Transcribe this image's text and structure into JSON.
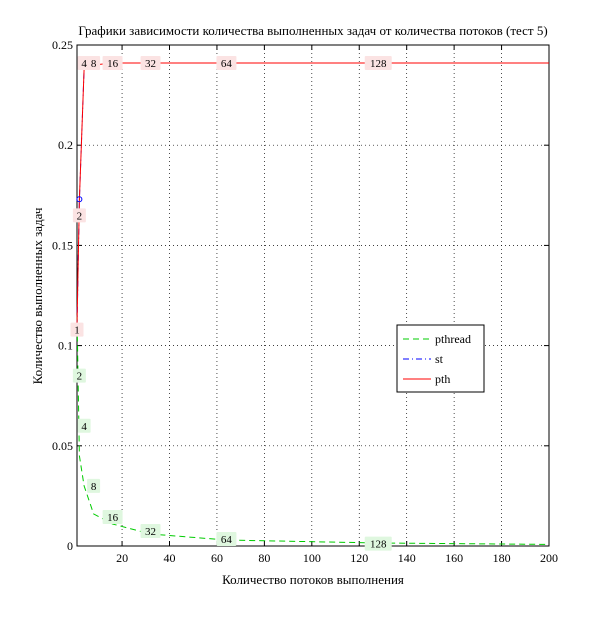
{
  "chart_data": {
    "type": "line",
    "title": "Графики зависимости количества выполненных задач от количества потоков (тест 5)",
    "xlabel": "Количество потоков выполнения",
    "ylabel": "Количество выполненных задач",
    "xlim": [
      1,
      200
    ],
    "ylim": [
      0,
      0.25
    ],
    "x_ticks": [
      20,
      40,
      60,
      80,
      100,
      120,
      140,
      160,
      180,
      200
    ],
    "x_tick_labels": [
      "20",
      "40",
      "60",
      "80",
      "100",
      "120",
      "140",
      "160",
      "180",
      "200"
    ],
    "y_ticks": [
      0,
      0.05,
      0.1,
      0.15,
      0.2,
      0.25
    ],
    "y_tick_labels": [
      "0",
      "0.05",
      "0.1",
      "0.15",
      "0.2",
      "0.25"
    ],
    "grid": true,
    "legend_position": "right",
    "series": [
      {
        "name": "pthread",
        "color": "#00cc00",
        "dash": "dashed",
        "x": [
          1,
          2,
          4,
          8,
          16,
          32,
          64,
          128,
          200
        ],
        "y": [
          0.115,
          0.045,
          0.03,
          0.016,
          0.011,
          0.006,
          0.003,
          0.0015,
          0.0008
        ]
      },
      {
        "name": "st",
        "color": "#0000ff",
        "dash": "dashdot",
        "x": [
          1,
          2,
          4,
          8
        ],
        "y": [
          0.11,
          0.173,
          0.238,
          0.241
        ]
      },
      {
        "name": "pth",
        "color": "#ff0000",
        "dash": "solid",
        "x": [
          1,
          2,
          4,
          8,
          16,
          32,
          64,
          128,
          200
        ],
        "y": [
          0.11,
          0.173,
          0.238,
          0.24,
          0.241,
          0.241,
          0.241,
          0.241,
          0.241
        ]
      }
    ],
    "point_labels": [
      {
        "text": "1",
        "series": "pth",
        "x": 1,
        "y": 0.108
      },
      {
        "text": "2",
        "series": "pth",
        "x": 2,
        "y": 0.165
      },
      {
        "text": "4",
        "series": "pth",
        "x": 4,
        "y": 0.241
      },
      {
        "text": "8",
        "series": "pth",
        "x": 8,
        "y": 0.241
      },
      {
        "text": "16",
        "series": "pth",
        "x": 16,
        "y": 0.241
      },
      {
        "text": "32",
        "series": "pth",
        "x": 32,
        "y": 0.241
      },
      {
        "text": "64",
        "series": "pth",
        "x": 64,
        "y": 0.241
      },
      {
        "text": "128",
        "series": "pth",
        "x": 128,
        "y": 0.241
      },
      {
        "text": "2",
        "series": "pthread",
        "x": 2,
        "y": 0.085
      },
      {
        "text": "4",
        "series": "pthread",
        "x": 4,
        "y": 0.06
      },
      {
        "text": "8",
        "series": "pthread",
        "x": 8,
        "y": 0.03
      },
      {
        "text": "16",
        "series": "pthread",
        "x": 16,
        "y": 0.0145
      },
      {
        "text": "32",
        "series": "pthread",
        "x": 32,
        "y": 0.0075
      },
      {
        "text": "64",
        "series": "pthread",
        "x": 64,
        "y": 0.0035
      },
      {
        "text": "128",
        "series": "pthread",
        "x": 128,
        "y": 0.0012
      }
    ]
  }
}
